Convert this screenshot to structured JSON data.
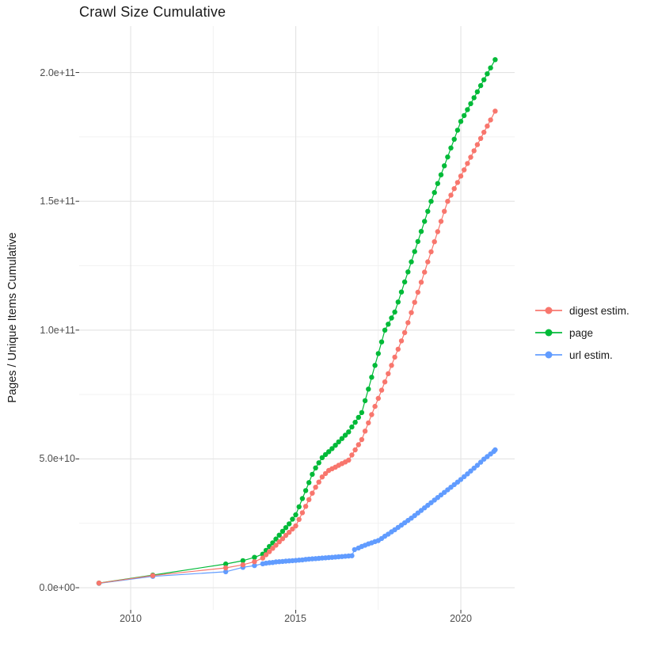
{
  "title": "Crawl Size Cumulative",
  "axes": {
    "y_label": "Pages / Unique Items Cumulative",
    "y_ticks": [
      {
        "label": "0.0e+00",
        "billions": 0
      },
      {
        "label": "5.0e+10",
        "billions": 50
      },
      {
        "label": "1.0e+11",
        "billions": 100
      },
      {
        "label": "1.5e+11",
        "billions": 150
      },
      {
        "label": "2.0e+11",
        "billions": 200
      }
    ],
    "x_ticks": [
      {
        "label": "2010",
        "year": 2010
      },
      {
        "label": "2015",
        "year": 2015
      },
      {
        "label": "2020",
        "year": 2020
      }
    ]
  },
  "legend": {
    "items": [
      {
        "label": "digest estim.",
        "color": "#F8766D"
      },
      {
        "label": "page",
        "color": "#00BA38"
      },
      {
        "label": "url estim.",
        "color": "#619CFF"
      }
    ]
  },
  "colors": {
    "grid_major": "#E3E3E3",
    "grid_minor": "#F0F0F0",
    "tick_mark": "#333333",
    "axis_text": "#4d4d4d"
  },
  "chart_data": {
    "type": "scatter",
    "title": "Crawl Size Cumulative",
    "xlabel": "",
    "ylabel": "Pages / Unique Items Cumulative",
    "value_unit": "billions (1e9) of pages / unique items",
    "xlim": [
      2008.44,
      2021.63
    ],
    "ylim_billions": [
      -8.6,
      218
    ],
    "x_major_gridlines": [
      2010,
      2015,
      2020
    ],
    "x_minor_gridlines": [
      2012.5,
      2017.5
    ],
    "y_major_gridlines_billions": [
      0,
      50,
      100,
      150,
      200
    ],
    "y_minor_gridlines_billions": [
      25,
      75,
      125,
      175
    ],
    "legend_position": "right",
    "grid": true,
    "draw_order": [
      "url estim.",
      "page",
      "digest estim."
    ],
    "series": [
      {
        "name": "digest estim.",
        "color": "#F8766D",
        "points": [
          [
            2009.04,
            1.8
          ],
          [
            2010.67,
            4.7
          ],
          [
            2012.88,
            7.7
          ],
          [
            2013.4,
            8.9
          ],
          [
            2013.75,
            10.1
          ],
          [
            2014.0,
            11.5
          ],
          [
            2014.1,
            12.8
          ],
          [
            2014.2,
            14.0
          ],
          [
            2014.3,
            15.3
          ],
          [
            2014.4,
            16.5
          ],
          [
            2014.5,
            17.8
          ],
          [
            2014.6,
            19.0
          ],
          [
            2014.7,
            20.3
          ],
          [
            2014.8,
            21.5
          ],
          [
            2014.9,
            22.8
          ],
          [
            2015.0,
            24.0
          ],
          [
            2015.1,
            26.5
          ],
          [
            2015.2,
            29.1
          ],
          [
            2015.3,
            31.6
          ],
          [
            2015.4,
            34.2
          ],
          [
            2015.5,
            36.7
          ],
          [
            2015.6,
            39.0
          ],
          [
            2015.7,
            41.0
          ],
          [
            2015.8,
            43.0
          ],
          [
            2015.9,
            44.3
          ],
          [
            2016.0,
            45.5
          ],
          [
            2016.1,
            46.2
          ],
          [
            2016.2,
            46.8
          ],
          [
            2016.3,
            47.5
          ],
          [
            2016.4,
            48.2
          ],
          [
            2016.5,
            48.8
          ],
          [
            2016.6,
            49.5
          ],
          [
            2016.7,
            51.5
          ],
          [
            2016.8,
            53.5
          ],
          [
            2016.9,
            55.5
          ],
          [
            2017.0,
            57.5
          ],
          [
            2017.1,
            60.8
          ],
          [
            2017.2,
            64.0
          ],
          [
            2017.3,
            67.2
          ],
          [
            2017.4,
            70.4
          ],
          [
            2017.5,
            73.5
          ],
          [
            2017.6,
            76.7
          ],
          [
            2017.7,
            79.9
          ],
          [
            2017.8,
            83.1
          ],
          [
            2017.9,
            86.3
          ],
          [
            2018.0,
            89.5
          ],
          [
            2018.1,
            92.6
          ],
          [
            2018.2,
            95.8
          ],
          [
            2018.3,
            99.0
          ],
          [
            2018.4,
            102.9
          ],
          [
            2018.5,
            106.8
          ],
          [
            2018.6,
            110.8
          ],
          [
            2018.7,
            114.7
          ],
          [
            2018.8,
            118.6
          ],
          [
            2018.9,
            122.5
          ],
          [
            2019.0,
            126.5
          ],
          [
            2019.1,
            130.4
          ],
          [
            2019.2,
            134.3
          ],
          [
            2019.3,
            138.2
          ],
          [
            2019.4,
            142.2
          ],
          [
            2019.5,
            146.1
          ],
          [
            2019.6,
            150.0
          ],
          [
            2019.7,
            152.4
          ],
          [
            2019.8,
            154.9
          ],
          [
            2019.9,
            157.3
          ],
          [
            2020.0,
            159.8
          ],
          [
            2020.1,
            162.2
          ],
          [
            2020.2,
            164.7
          ],
          [
            2020.3,
            167.1
          ],
          [
            2020.4,
            169.6
          ],
          [
            2020.5,
            172.0
          ],
          [
            2020.6,
            174.4
          ],
          [
            2020.7,
            176.8
          ],
          [
            2020.8,
            179.2
          ],
          [
            2020.9,
            181.6
          ],
          [
            2021.04,
            185.0
          ]
        ]
      },
      {
        "name": "page",
        "color": "#00BA38",
        "points": [
          [
            2009.04,
            1.8
          ],
          [
            2010.67,
            4.9
          ],
          [
            2012.88,
            9.2
          ],
          [
            2013.4,
            10.5
          ],
          [
            2013.75,
            11.8
          ],
          [
            2014.0,
            13.0
          ],
          [
            2014.1,
            14.5
          ],
          [
            2014.2,
            16.0
          ],
          [
            2014.3,
            17.4
          ],
          [
            2014.4,
            18.9
          ],
          [
            2014.5,
            20.4
          ],
          [
            2014.6,
            21.9
          ],
          [
            2014.7,
            23.3
          ],
          [
            2014.8,
            24.8
          ],
          [
            2014.9,
            26.6
          ],
          [
            2015.0,
            28.3
          ],
          [
            2015.1,
            31.4
          ],
          [
            2015.2,
            34.6
          ],
          [
            2015.3,
            37.7
          ],
          [
            2015.4,
            40.8
          ],
          [
            2015.5,
            44.0
          ],
          [
            2015.6,
            46.5
          ],
          [
            2015.7,
            48.5
          ],
          [
            2015.8,
            50.5
          ],
          [
            2015.9,
            51.7
          ],
          [
            2016.0,
            52.8
          ],
          [
            2016.1,
            54.0
          ],
          [
            2016.2,
            55.3
          ],
          [
            2016.3,
            56.6
          ],
          [
            2016.4,
            57.9
          ],
          [
            2016.5,
            59.2
          ],
          [
            2016.6,
            60.5
          ],
          [
            2016.7,
            62.4
          ],
          [
            2016.8,
            64.2
          ],
          [
            2016.9,
            66.1
          ],
          [
            2017.0,
            68.0
          ],
          [
            2017.1,
            72.6
          ],
          [
            2017.2,
            77.1
          ],
          [
            2017.3,
            81.7
          ],
          [
            2017.4,
            86.3
          ],
          [
            2017.5,
            90.9
          ],
          [
            2017.6,
            95.4
          ],
          [
            2017.7,
            100.0
          ],
          [
            2017.8,
            102.3
          ],
          [
            2017.9,
            104.7
          ],
          [
            2018.0,
            107.0
          ],
          [
            2018.1,
            110.9
          ],
          [
            2018.2,
            114.8
          ],
          [
            2018.3,
            118.7
          ],
          [
            2018.4,
            122.6
          ],
          [
            2018.5,
            126.5
          ],
          [
            2018.6,
            130.5
          ],
          [
            2018.7,
            134.4
          ],
          [
            2018.8,
            138.3
          ],
          [
            2018.9,
            142.2
          ],
          [
            2019.0,
            146.1
          ],
          [
            2019.1,
            150.0
          ],
          [
            2019.2,
            153.4
          ],
          [
            2019.3,
            156.9
          ],
          [
            2019.4,
            160.3
          ],
          [
            2019.5,
            163.8
          ],
          [
            2019.6,
            167.2
          ],
          [
            2019.7,
            170.7
          ],
          [
            2019.8,
            174.1
          ],
          [
            2019.9,
            177.6
          ],
          [
            2020.0,
            181.0
          ],
          [
            2020.1,
            183.3
          ],
          [
            2020.2,
            185.6
          ],
          [
            2020.3,
            187.9
          ],
          [
            2020.4,
            190.2
          ],
          [
            2020.5,
            192.5
          ],
          [
            2020.6,
            194.9
          ],
          [
            2020.7,
            197.2
          ],
          [
            2020.8,
            199.5
          ],
          [
            2020.9,
            201.8
          ],
          [
            2021.04,
            205.0
          ]
        ]
      },
      {
        "name": "url estim.",
        "color": "#619CFF",
        "points": [
          [
            2009.04,
            1.7
          ],
          [
            2010.67,
            4.4
          ],
          [
            2012.88,
            6.2
          ],
          [
            2013.4,
            7.9
          ],
          [
            2013.75,
            8.6
          ],
          [
            2014.0,
            9.3
          ],
          [
            2014.1,
            9.5
          ],
          [
            2014.2,
            9.7
          ],
          [
            2014.3,
            9.8
          ],
          [
            2014.4,
            10.0
          ],
          [
            2014.5,
            10.1
          ],
          [
            2014.6,
            10.2
          ],
          [
            2014.7,
            10.3
          ],
          [
            2014.8,
            10.4
          ],
          [
            2014.9,
            10.5
          ],
          [
            2015.0,
            10.6
          ],
          [
            2015.1,
            10.7
          ],
          [
            2015.2,
            10.8
          ],
          [
            2015.3,
            11.0
          ],
          [
            2015.4,
            11.1
          ],
          [
            2015.5,
            11.2
          ],
          [
            2015.6,
            11.3
          ],
          [
            2015.7,
            11.4
          ],
          [
            2015.8,
            11.5
          ],
          [
            2015.9,
            11.6
          ],
          [
            2016.0,
            11.7
          ],
          [
            2016.1,
            11.8
          ],
          [
            2016.2,
            11.9
          ],
          [
            2016.3,
            12.0
          ],
          [
            2016.4,
            12.1
          ],
          [
            2016.5,
            12.2
          ],
          [
            2016.6,
            12.3
          ],
          [
            2016.7,
            12.4
          ],
          [
            2016.78,
            14.8
          ],
          [
            2016.9,
            15.4
          ],
          [
            2017.0,
            16.0
          ],
          [
            2017.1,
            16.5
          ],
          [
            2017.2,
            17.0
          ],
          [
            2017.3,
            17.4
          ],
          [
            2017.4,
            17.9
          ],
          [
            2017.5,
            18.3
          ],
          [
            2017.6,
            19.1
          ],
          [
            2017.7,
            20.0
          ],
          [
            2017.8,
            20.8
          ],
          [
            2017.9,
            21.7
          ],
          [
            2018.0,
            22.5
          ],
          [
            2018.1,
            23.4
          ],
          [
            2018.2,
            24.3
          ],
          [
            2018.3,
            25.2
          ],
          [
            2018.4,
            26.1
          ],
          [
            2018.5,
            27.0
          ],
          [
            2018.6,
            28.0
          ],
          [
            2018.7,
            29.0
          ],
          [
            2018.8,
            30.0
          ],
          [
            2018.9,
            31.0
          ],
          [
            2019.0,
            32.0
          ],
          [
            2019.1,
            33.0
          ],
          [
            2019.2,
            34.0
          ],
          [
            2019.3,
            35.0
          ],
          [
            2019.4,
            36.0
          ],
          [
            2019.5,
            37.0
          ],
          [
            2019.6,
            38.0
          ],
          [
            2019.7,
            39.0
          ],
          [
            2019.8,
            40.0
          ],
          [
            2019.9,
            41.0
          ],
          [
            2020.0,
            42.0
          ],
          [
            2020.1,
            43.1
          ],
          [
            2020.2,
            44.2
          ],
          [
            2020.3,
            45.3
          ],
          [
            2020.4,
            46.4
          ],
          [
            2020.5,
            47.5
          ],
          [
            2020.6,
            48.7
          ],
          [
            2020.7,
            49.9
          ],
          [
            2020.8,
            50.9
          ],
          [
            2020.9,
            51.9
          ],
          [
            2021.0,
            52.9
          ],
          [
            2021.04,
            53.5
          ]
        ]
      }
    ]
  }
}
